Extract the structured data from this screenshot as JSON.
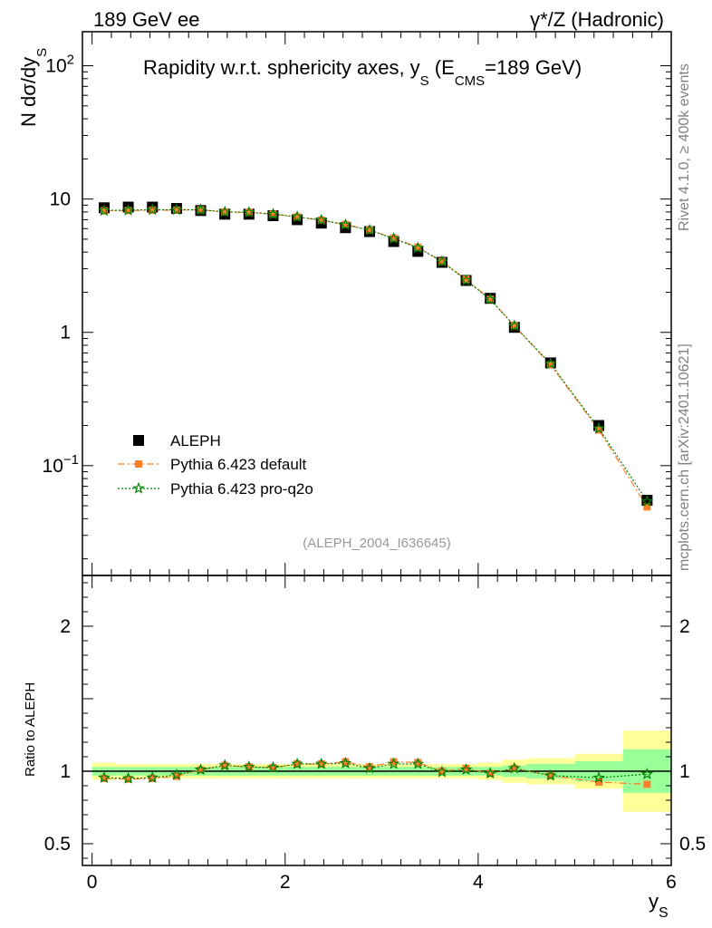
{
  "header": {
    "left_title": "189 GeV ee",
    "right_title": "γ*/Z (Hadronic)"
  },
  "side_labels": {
    "rivet": "Rivet 4.1.0, ≥ 400k events",
    "mcplots": "mcplots.cern.ch [arXiv:2401.10621]"
  },
  "analysis_id": "(ALEPH_2004_I636645)",
  "colors": {
    "data": "#000000",
    "pythia_default": "#ff7f2a",
    "pythia_proq2o": "#008000",
    "band_outer": "#ffff99",
    "band_inner": "#99ff99"
  },
  "chart_data": [
    {
      "type": "scatter",
      "title": "Rapidity w.r.t. sphericity axes, y_S (E_CMS=189 GeV)",
      "title_parts": {
        "main": "Rapidity w.r.t. sphericity axes, y",
        "sub_s": "S",
        "open": " (E",
        "sub_cms": "CMS",
        "close": "=189 GeV)"
      },
      "ylabel": "N  dσ/dy_S",
      "ylabel_parts": {
        "main": "N  dσ/dy",
        "sub": "S"
      },
      "yscale": "log",
      "ylim": [
        0.015,
        180
      ],
      "xlim": [
        -0.1,
        6.0
      ],
      "yticks_major": [
        {
          "value": 100,
          "label": "10",
          "exp": "2"
        },
        {
          "value": 10,
          "label": "10",
          "exp": ""
        },
        {
          "value": 1,
          "label": "1",
          "exp": ""
        },
        {
          "value": 0.1,
          "label": "10",
          "exp": "−1"
        }
      ],
      "legend": {
        "position": "bottom-left",
        "entries": [
          "ALEPH",
          "Pythia 6.423 default",
          "Pythia 6.423 pro-q2o"
        ]
      },
      "x": [
        0.125,
        0.375,
        0.625,
        0.875,
        1.125,
        1.375,
        1.625,
        1.875,
        2.125,
        2.375,
        2.625,
        2.875,
        3.125,
        3.375,
        3.625,
        3.875,
        4.125,
        4.375,
        4.75,
        5.25,
        5.75
      ],
      "series": [
        {
          "name": "ALEPH",
          "marker": "square",
          "values": [
            8.6,
            8.7,
            8.7,
            8.5,
            8.2,
            7.7,
            7.7,
            7.5,
            7.0,
            6.6,
            6.1,
            5.7,
            4.8,
            4.05,
            3.35,
            2.45,
            1.8,
            1.09,
            0.59,
            0.2,
            0.055
          ]
        },
        {
          "name": "Pythia 6.423 default",
          "marker": "square-small",
          "values": [
            8.15,
            8.2,
            8.25,
            8.25,
            8.3,
            8.0,
            7.95,
            7.7,
            7.35,
            6.95,
            6.45,
            5.85,
            5.1,
            4.35,
            3.4,
            2.5,
            1.77,
            1.12,
            0.57,
            0.185,
            0.049
          ]
        },
        {
          "name": "Pythia 6.423 pro-q2o",
          "marker": "star",
          "values": [
            8.2,
            8.25,
            8.3,
            8.3,
            8.3,
            8.0,
            7.95,
            7.7,
            7.35,
            6.95,
            6.4,
            5.85,
            5.05,
            4.3,
            3.4,
            2.45,
            1.77,
            1.12,
            0.58,
            0.19,
            0.054
          ]
        }
      ]
    },
    {
      "type": "scatter",
      "ylabel": "Ratio to ALEPH",
      "xlabel": "y_S",
      "xlabel_parts": {
        "main": "y",
        "sub": "S"
      },
      "ylim": [
        0.35,
        2.35
      ],
      "xlim": [
        -0.1,
        6.0
      ],
      "yticks_major": [
        {
          "value": 2,
          "label": "2"
        },
        {
          "value": 1,
          "label": "1"
        },
        {
          "value": 0.5,
          "label": "0.5"
        }
      ],
      "xticks_major": [
        {
          "value": 0,
          "label": "0"
        },
        {
          "value": 2,
          "label": "2"
        },
        {
          "value": 4,
          "label": "4"
        },
        {
          "value": 6,
          "label": "6"
        }
      ],
      "bin_edges": [
        0,
        0.25,
        0.5,
        0.75,
        1.0,
        1.25,
        1.5,
        1.75,
        2.0,
        2.25,
        2.5,
        2.75,
        3.0,
        3.25,
        3.5,
        3.75,
        4.0,
        4.25,
        4.5,
        5.0,
        5.5,
        6.0
      ],
      "band_outer": [
        0.06,
        0.05,
        0.05,
        0.05,
        0.05,
        0.05,
        0.05,
        0.05,
        0.05,
        0.05,
        0.05,
        0.05,
        0.05,
        0.05,
        0.05,
        0.05,
        0.06,
        0.08,
        0.09,
        0.12,
        0.28
      ],
      "band_inner": [
        0.03,
        0.03,
        0.03,
        0.03,
        0.03,
        0.03,
        0.03,
        0.03,
        0.03,
        0.03,
        0.03,
        0.03,
        0.03,
        0.03,
        0.03,
        0.03,
        0.03,
        0.04,
        0.05,
        0.07,
        0.15
      ],
      "x": [
        0.125,
        0.375,
        0.625,
        0.875,
        1.125,
        1.375,
        1.625,
        1.875,
        2.125,
        2.375,
        2.625,
        2.875,
        3.125,
        3.375,
        3.625,
        3.875,
        4.125,
        4.375,
        4.75,
        5.25,
        5.75
      ],
      "series": [
        {
          "name": "Pythia 6.423 default",
          "values": [
            0.95,
            0.945,
            0.95,
            0.965,
            1.01,
            1.04,
            1.03,
            1.025,
            1.05,
            1.05,
            1.065,
            1.03,
            1.065,
            1.06,
            1.0,
            1.02,
            0.985,
            1.02,
            0.97,
            0.925,
            0.91
          ]
        },
        {
          "name": "Pythia 6.423 pro-q2o",
          "values": [
            0.955,
            0.95,
            0.955,
            0.975,
            1.01,
            1.04,
            1.03,
            1.025,
            1.05,
            1.05,
            1.055,
            1.02,
            1.05,
            1.05,
            0.995,
            1.01,
            0.985,
            1.02,
            0.97,
            0.955,
            0.98
          ]
        }
      ]
    }
  ]
}
